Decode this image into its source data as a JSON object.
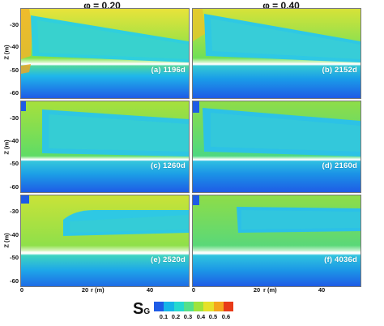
{
  "columns": [
    {
      "title": "φ = 0.20"
    },
    {
      "title": "φ = 0.40"
    }
  ],
  "axes": {
    "y_label": "Z (m)",
    "x_label": "r (m)",
    "y_ticks": [
      "-30",
      "-40",
      "-50",
      "-60"
    ],
    "x_ticks": [
      "0",
      "20",
      "40"
    ]
  },
  "panels": [
    {
      "label": "(a) 1196d"
    },
    {
      "label": "(b) 2152d"
    },
    {
      "label": "(c) 1260d"
    },
    {
      "label": "(d) 2160d"
    },
    {
      "label": "(e) 2520d"
    },
    {
      "label": "(f) 4036d"
    }
  ],
  "colorbar": {
    "symbol": "S",
    "subscript": "G",
    "ticks": [
      "0.1",
      "0.2",
      "0.3",
      "0.4",
      "0.5",
      "0.6"
    ],
    "colors": [
      "#1e5be6",
      "#16b4e8",
      "#25d9cf",
      "#54e08a",
      "#9ee33c",
      "#e6e12a",
      "#f5a51c",
      "#e83a18"
    ]
  }
}
